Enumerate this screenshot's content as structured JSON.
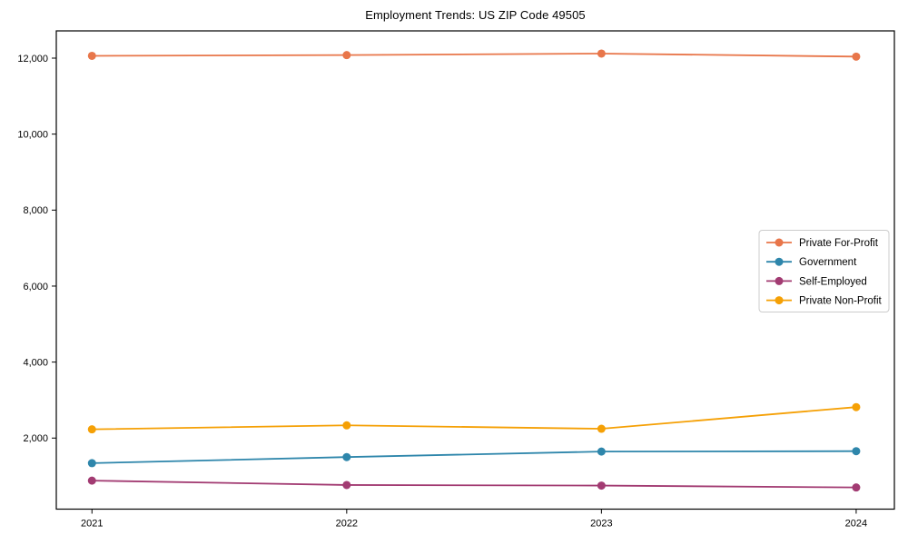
{
  "chart_data": {
    "type": "line",
    "title": "Employment Trends: US ZIP Code 49505",
    "xlabel": "",
    "ylabel": "",
    "x": [
      2021,
      2022,
      2023,
      2024
    ],
    "xtick_labels": [
      "2021",
      "2022",
      "2023",
      "2024"
    ],
    "yticks": [
      2000,
      4000,
      6000,
      8000,
      10000,
      12000
    ],
    "ytick_labels": [
      "2,000",
      "4,000",
      "6,000",
      "8,000",
      "10,000",
      "12,000"
    ],
    "ylim": [
      130,
      12717
    ],
    "xlim": [
      2020.86,
      2024.15
    ],
    "grid": false,
    "legend_position": "right-middle",
    "series": [
      {
        "name": "Private For-Profit",
        "color": "#e8764a",
        "values": [
          12060,
          12080,
          12120,
          12040
        ]
      },
      {
        "name": "Government",
        "color": "#2e86ab",
        "values": [
          1340,
          1500,
          1645,
          1655
        ]
      },
      {
        "name": "Self-Employed",
        "color": "#a23b72",
        "values": [
          880,
          765,
          750,
          700
        ]
      },
      {
        "name": "Private Non-Profit",
        "color": "#f5a005",
        "values": [
          2230,
          2335,
          2245,
          2815
        ]
      }
    ],
    "axis_color": "#000000",
    "text_color": "#000000",
    "legend_border_color": "#cccccc",
    "legend_bg_color": "#ffffff"
  }
}
